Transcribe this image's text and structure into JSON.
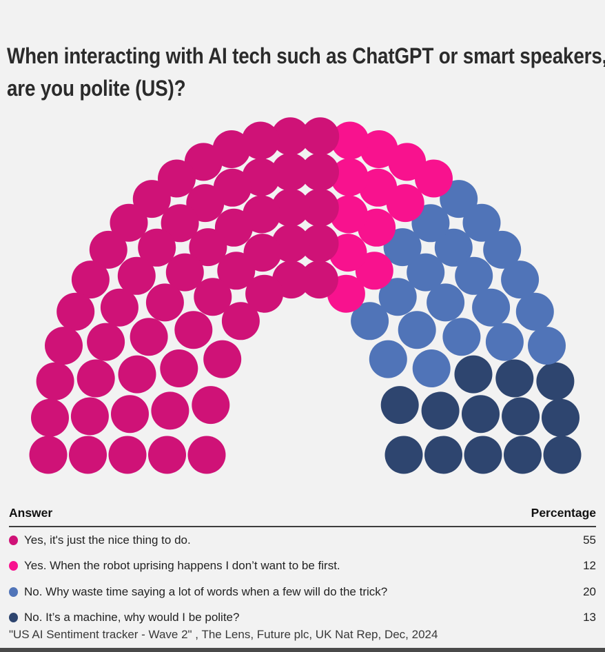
{
  "header": {
    "title": "When interacting with AI tech such as ChatGPT or smart speakers, are you polite (US)?"
  },
  "chart_data": {
    "type": "parliament-dot",
    "total_seats": 100,
    "rows": 5,
    "seats_per_row": [
      12,
      16,
      20,
      24,
      28
    ],
    "title": "When interacting with AI tech such as ChatGPT or smart speakers, are you polite (US)?",
    "legend_position": "table-below",
    "categories": [
      {
        "label": "Yes, it's just the nice thing to do.",
        "value": 55,
        "color": "#CF1277"
      },
      {
        "label": "Yes. When the robot uprising happens I don’t want to be first.",
        "value": 12,
        "color": "#F8128E"
      },
      {
        "label": "No. Why waste time saying a lot of words when a few will do the trick?",
        "value": 20,
        "color": "#5074B8"
      },
      {
        "label": "No. It’s a machine, why would I be polite?",
        "value": 13,
        "color": "#2E456F"
      }
    ]
  },
  "table": {
    "columns": [
      "Answer",
      "Percentage"
    ]
  },
  "footer": {
    "source": "\"US AI Sentiment tracker - Wave 2\" , The Lens, Future plc, UK Nat Rep, Dec, 2024"
  },
  "colors": {
    "background": "#f2f2f2",
    "title_text": "#2b2b2b",
    "header_rule": "#3d3d3d",
    "bottom_bar": "#4a4a4a"
  }
}
